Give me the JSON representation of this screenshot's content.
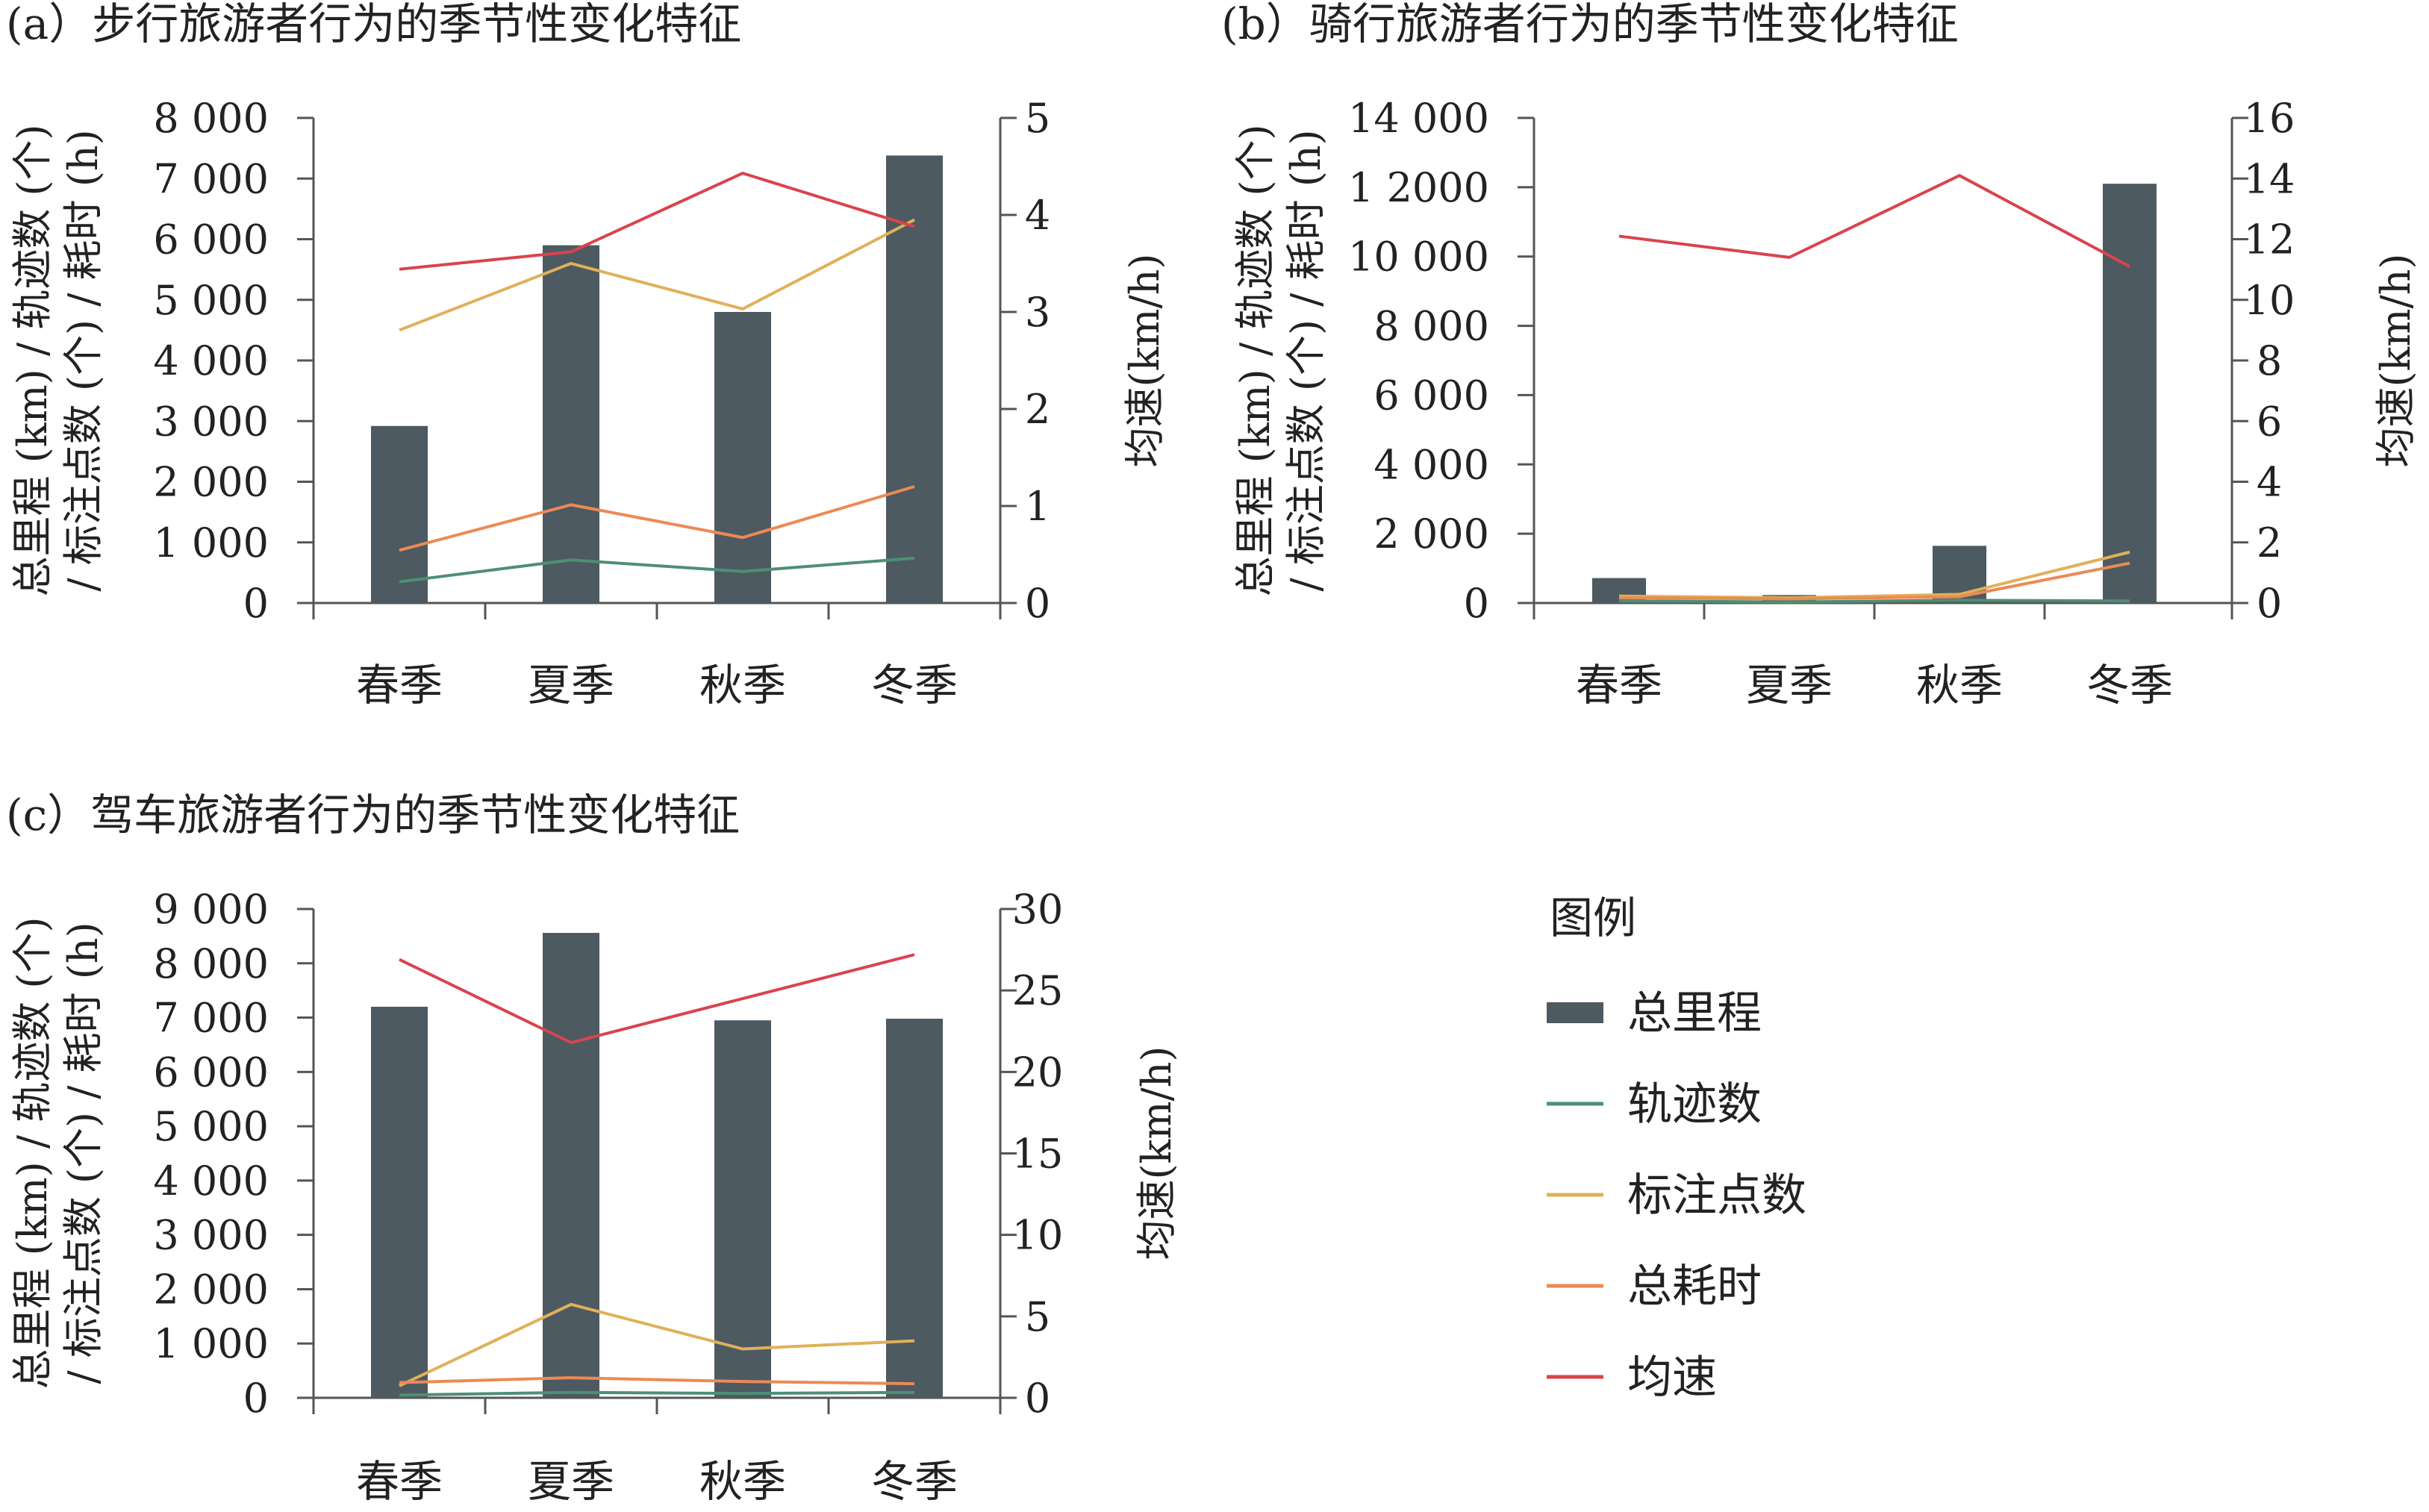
{
  "colors": {
    "total_distance": "#4d5a61",
    "track_count": "#4e8f73",
    "marker_count": "#e0b05a",
    "total_time": "#ec8a55",
    "avg_speed": "#d9444d"
  },
  "legend": {
    "title": "图例",
    "items": [
      {
        "key": "total_distance",
        "label": "总里程",
        "kind": "bar"
      },
      {
        "key": "track_count",
        "label": "轨迹数",
        "kind": "line"
      },
      {
        "key": "marker_count",
        "label": "标注点数",
        "kind": "line"
      },
      {
        "key": "total_time",
        "label": "总耗时",
        "kind": "line"
      },
      {
        "key": "avg_speed",
        "label": "均速",
        "kind": "line"
      }
    ]
  },
  "chart_data": [
    {
      "id": "a",
      "type": "bar",
      "title": "(a）步行旅游者行为的季节性变化特征",
      "categories": [
        "春季",
        "夏季",
        "秋季",
        "冬季"
      ],
      "y_left": {
        "label_lines": [
          "总里程 (km) / 轨迹数 (个)",
          "/ 标注点数 (个) / 耗时 (h)"
        ],
        "range": [
          0,
          8000
        ],
        "ticks": [
          0,
          1000,
          2000,
          3000,
          4000,
          5000,
          6000,
          7000,
          8000
        ],
        "tick_labels": [
          "0",
          "1 000",
          "2 000",
          "3 000",
          "4 000",
          "5 000",
          "6 000",
          "7 000",
          "8 000"
        ]
      },
      "y_right": {
        "label": "均速(km/h)",
        "range": [
          0,
          5
        ],
        "ticks": [
          0,
          1,
          2,
          3,
          4,
          5
        ],
        "tick_labels": [
          "0",
          "1",
          "2",
          "3",
          "4",
          "5"
        ]
      },
      "series": [
        {
          "name": "总里程",
          "key": "total_distance",
          "kind": "bar",
          "axis": "left",
          "values": [
            2920,
            5900,
            4800,
            7380
          ]
        },
        {
          "name": "轨迹数",
          "key": "track_count",
          "kind": "line",
          "axis": "left",
          "values": [
            350,
            710,
            520,
            740
          ]
        },
        {
          "name": "标注点数",
          "key": "marker_count",
          "kind": "line",
          "axis": "left",
          "values": [
            4500,
            5600,
            4850,
            6320
          ]
        },
        {
          "name": "总耗时",
          "key": "total_time",
          "kind": "line",
          "axis": "left",
          "values": [
            870,
            1620,
            1080,
            1920
          ]
        },
        {
          "name": "均速",
          "key": "avg_speed",
          "kind": "line",
          "axis": "right",
          "values": [
            3.44,
            3.62,
            4.43,
            3.88
          ]
        }
      ]
    },
    {
      "id": "b",
      "type": "bar",
      "title": "(b）骑行旅游者行为的季节性变化特征",
      "categories": [
        "春季",
        "夏季",
        "秋季",
        "冬季"
      ],
      "y_left": {
        "label_lines": [
          "总里程 (km) / 轨迹数 (个)",
          "/ 标注点数 (个) / 耗时 (h)"
        ],
        "range": [
          0,
          14000
        ],
        "ticks": [
          0,
          2000,
          4000,
          6000,
          8000,
          10000,
          12000,
          14000
        ],
        "tick_labels": [
          "0",
          "2 000",
          "4 000",
          "6 000",
          "8 000",
          "10 000",
          "1 2000",
          "14 000"
        ]
      },
      "y_right": {
        "label": "均速(km/h)",
        "range": [
          0,
          16
        ],
        "ticks": [
          0,
          2,
          4,
          6,
          8,
          10,
          12,
          14,
          16
        ],
        "tick_labels": [
          "0",
          "2",
          "4",
          "6",
          "8",
          "10",
          "12",
          "14",
          "16"
        ]
      },
      "series": [
        {
          "name": "总里程",
          "key": "total_distance",
          "kind": "bar",
          "axis": "left",
          "values": [
            720,
            230,
            1650,
            12100
          ]
        },
        {
          "name": "轨迹数",
          "key": "track_count",
          "kind": "line",
          "axis": "left",
          "values": [
            60,
            30,
            80,
            60
          ]
        },
        {
          "name": "标注点数",
          "key": "marker_count",
          "kind": "line",
          "axis": "left",
          "values": [
            200,
            150,
            250,
            1470
          ]
        },
        {
          "name": "总耗时",
          "key": "total_time",
          "kind": "line",
          "axis": "left",
          "values": [
            150,
            120,
            180,
            1150
          ]
        },
        {
          "name": "均速",
          "key": "avg_speed",
          "kind": "line",
          "axis": "right",
          "values": [
            12.1,
            11.4,
            14.1,
            11.1
          ]
        }
      ]
    },
    {
      "id": "c",
      "type": "bar",
      "title": "(c）驾车旅游者行为的季节性变化特征",
      "categories": [
        "春季",
        "夏季",
        "秋季",
        "冬季"
      ],
      "y_left": {
        "label_lines": [
          "总里程 (km) / 轨迹数 (个)",
          "/ 标注点数 (个) / 耗时 (h)"
        ],
        "range": [
          0,
          9000
        ],
        "ticks": [
          0,
          1000,
          2000,
          3000,
          4000,
          5000,
          6000,
          7000,
          8000,
          9000
        ],
        "tick_labels": [
          "0",
          "1 000",
          "2 000",
          "3 000",
          "4 000",
          "5 000",
          "6 000",
          "7 000",
          "8 000",
          "9 000"
        ]
      },
      "y_right": {
        "label": "均速(km/h)",
        "range": [
          0,
          30
        ],
        "ticks": [
          0,
          5,
          10,
          15,
          20,
          25,
          30
        ],
        "tick_labels": [
          "0",
          "5",
          "10",
          "15",
          "20",
          "25",
          "30"
        ]
      },
      "series": [
        {
          "name": "总里程",
          "key": "total_distance",
          "kind": "bar",
          "axis": "left",
          "values": [
            7200,
            8560,
            6950,
            6980
          ]
        },
        {
          "name": "轨迹数",
          "key": "track_count",
          "kind": "line",
          "axis": "left",
          "values": [
            50,
            100,
            80,
            100
          ]
        },
        {
          "name": "标注点数",
          "key": "marker_count",
          "kind": "line",
          "axis": "left",
          "values": [
            220,
            1720,
            900,
            1050
          ]
        },
        {
          "name": "总耗时",
          "key": "total_time",
          "kind": "line",
          "axis": "left",
          "values": [
            280,
            370,
            300,
            260
          ]
        },
        {
          "name": "均速",
          "key": "avg_speed",
          "kind": "line",
          "axis": "right",
          "values": [
            26.9,
            21.8,
            24.5,
            27.2
          ]
        }
      ]
    }
  ]
}
